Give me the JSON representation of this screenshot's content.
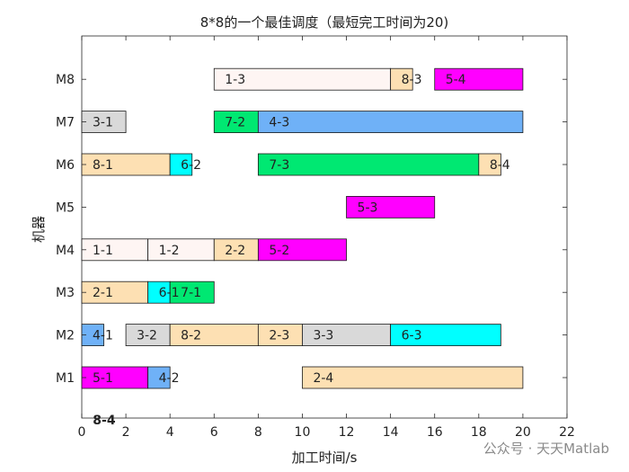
{
  "chart_data": {
    "type": "gantt",
    "title": "8*8的一个最佳调度（最短完工时间为20)",
    "xlabel": "加工时间/s",
    "ylabel": "机器",
    "xlim": [
      0,
      22
    ],
    "xticks": [
      0,
      2,
      4,
      6,
      8,
      10,
      12,
      14,
      16,
      18,
      20,
      22
    ],
    "machines": [
      "M1",
      "M2",
      "M3",
      "M4",
      "M5",
      "M6",
      "M7",
      "M8"
    ],
    "grid": false,
    "stray_label": "8-4",
    "job_colors": {
      "1": "#fef5f3",
      "2": "#fde0b3",
      "3": "#d9d9d9",
      "4": "#6fb1f7",
      "5": "#ff00ff",
      "6": "#00ffff",
      "7": "#00e872",
      "8": "#fde0b3"
    },
    "tasks": [
      {
        "machine": "M1",
        "label": "5-1",
        "job": 5,
        "start": 0,
        "end": 3
      },
      {
        "machine": "M1",
        "label": "4-2",
        "job": 4,
        "start": 3,
        "end": 4
      },
      {
        "machine": "M1",
        "label": "2-4",
        "job": 2,
        "start": 10,
        "end": 20
      },
      {
        "machine": "M2",
        "label": "4-1",
        "job": 4,
        "start": 0,
        "end": 1
      },
      {
        "machine": "M2",
        "label": "3-2",
        "job": 3,
        "start": 2,
        "end": 4
      },
      {
        "machine": "M2",
        "label": "8-2",
        "job": 8,
        "start": 4,
        "end": 8
      },
      {
        "machine": "M2",
        "label": "2-3",
        "job": 2,
        "start": 8,
        "end": 10
      },
      {
        "machine": "M2",
        "label": "3-3",
        "job": 3,
        "start": 10,
        "end": 14
      },
      {
        "machine": "M2",
        "label": "6-3",
        "job": 6,
        "start": 14,
        "end": 19
      },
      {
        "machine": "M3",
        "label": "2-1",
        "job": 2,
        "start": 0,
        "end": 3
      },
      {
        "machine": "M3",
        "label": "6-1",
        "job": 6,
        "start": 3,
        "end": 4
      },
      {
        "machine": "M3",
        "label": "7-1",
        "job": 7,
        "start": 4,
        "end": 6
      },
      {
        "machine": "M4",
        "label": "1-1",
        "job": 1,
        "start": 0,
        "end": 3
      },
      {
        "machine": "M4",
        "label": "1-2",
        "job": 1,
        "start": 3,
        "end": 6
      },
      {
        "machine": "M4",
        "label": "2-2",
        "job": 2,
        "start": 6,
        "end": 8
      },
      {
        "machine": "M4",
        "label": "5-2",
        "job": 5,
        "start": 8,
        "end": 12
      },
      {
        "machine": "M5",
        "label": "5-3",
        "job": 5,
        "start": 12,
        "end": 16
      },
      {
        "machine": "M6",
        "label": "8-1",
        "job": 8,
        "start": 0,
        "end": 4
      },
      {
        "machine": "M6",
        "label": "6-2",
        "job": 6,
        "start": 4,
        "end": 5
      },
      {
        "machine": "M6",
        "label": "7-3",
        "job": 7,
        "start": 8,
        "end": 18
      },
      {
        "machine": "M6",
        "label": "8-4",
        "job": 8,
        "start": 18,
        "end": 19
      },
      {
        "machine": "M7",
        "label": "3-1",
        "job": 3,
        "start": 0,
        "end": 2
      },
      {
        "machine": "M7",
        "label": "7-2",
        "job": 7,
        "start": 6,
        "end": 8
      },
      {
        "machine": "M7",
        "label": "4-3",
        "job": 4,
        "start": 8,
        "end": 20
      },
      {
        "machine": "M8",
        "label": "1-3",
        "job": 1,
        "start": 6,
        "end": 14
      },
      {
        "machine": "M8",
        "label": "8-3",
        "job": 8,
        "start": 14,
        "end": 15
      },
      {
        "machine": "M8",
        "label": "5-4",
        "job": 5,
        "start": 16,
        "end": 20
      }
    ]
  },
  "watermark": "公众号 · 天天Matlab"
}
